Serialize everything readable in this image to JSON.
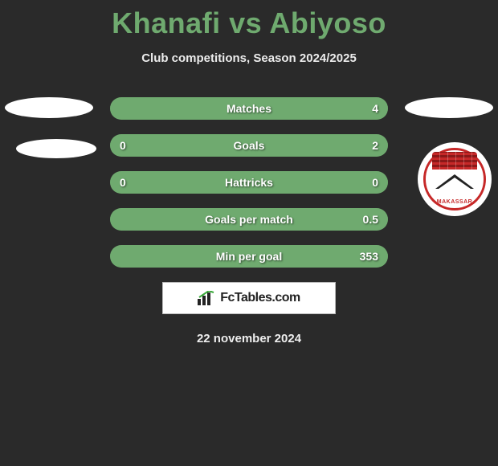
{
  "title": "Khanafi vs Abiyoso",
  "subtitle": "Club competitions, Season 2024/2025",
  "date": "22 november 2024",
  "footer_brand": "FcTables.com",
  "badge": {
    "bottom_text": "MAKASSAR"
  },
  "colors": {
    "background": "#2a2a2a",
    "title": "#6faa6f",
    "bar_base": "#3d5a3d",
    "bar_fill": "#6faa6f",
    "text": "#ffffff"
  },
  "bars": [
    {
      "label": "Matches",
      "left": "",
      "right": "4",
      "fill_side": "right",
      "fill_pct": 100
    },
    {
      "label": "Goals",
      "left": "0",
      "right": "2",
      "fill_side": "right",
      "fill_pct": 100
    },
    {
      "label": "Hattricks",
      "left": "0",
      "right": "0",
      "fill_side": "right",
      "fill_pct": 100
    },
    {
      "label": "Goals per match",
      "left": "",
      "right": "0.5",
      "fill_side": "right",
      "fill_pct": 100
    },
    {
      "label": "Min per goal",
      "left": "",
      "right": "353",
      "fill_side": "right",
      "fill_pct": 100
    }
  ]
}
